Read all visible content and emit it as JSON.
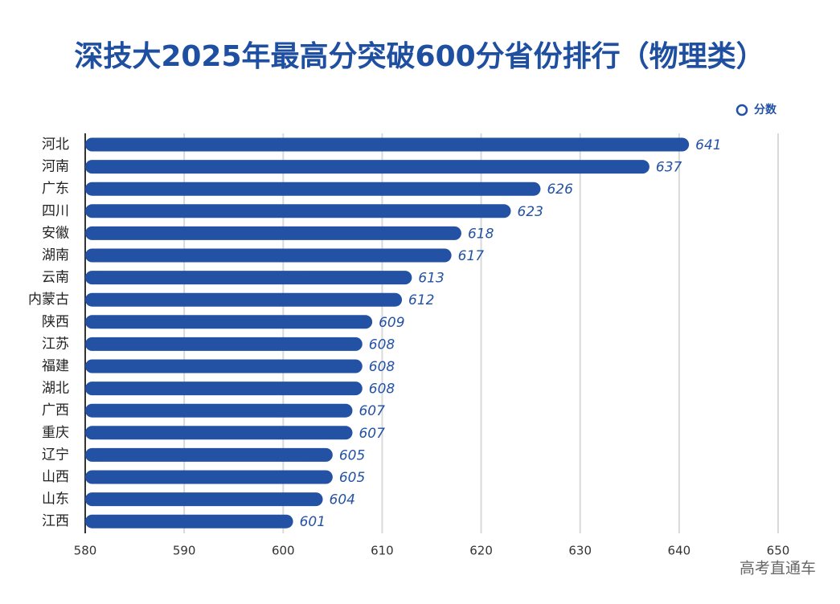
{
  "chart_data": {
    "type": "bar",
    "orientation": "horizontal",
    "title": "深技大2025年最高分突破600分省份排行（物理类）",
    "categories": [
      "河北",
      "河南",
      "广东",
      "四川",
      "安徽",
      "湖南",
      "云南",
      "内蒙古",
      "陕西",
      "江苏",
      "福建",
      "湖北",
      "广西",
      "重庆",
      "辽宁",
      "山西",
      "山东",
      "江西"
    ],
    "series": [
      {
        "name": "分数",
        "color": "#2352a5",
        "values": [
          641,
          637,
          626,
          623,
          618,
          617,
          613,
          612,
          609,
          608,
          608,
          608,
          607,
          607,
          605,
          605,
          604,
          601
        ]
      }
    ],
    "xlim": [
      580,
      650
    ],
    "xticks": [
      580,
      590,
      600,
      610,
      620,
      630,
      640,
      650
    ],
    "grid": true,
    "legend": "top-right",
    "watermark": "高考直通车"
  }
}
